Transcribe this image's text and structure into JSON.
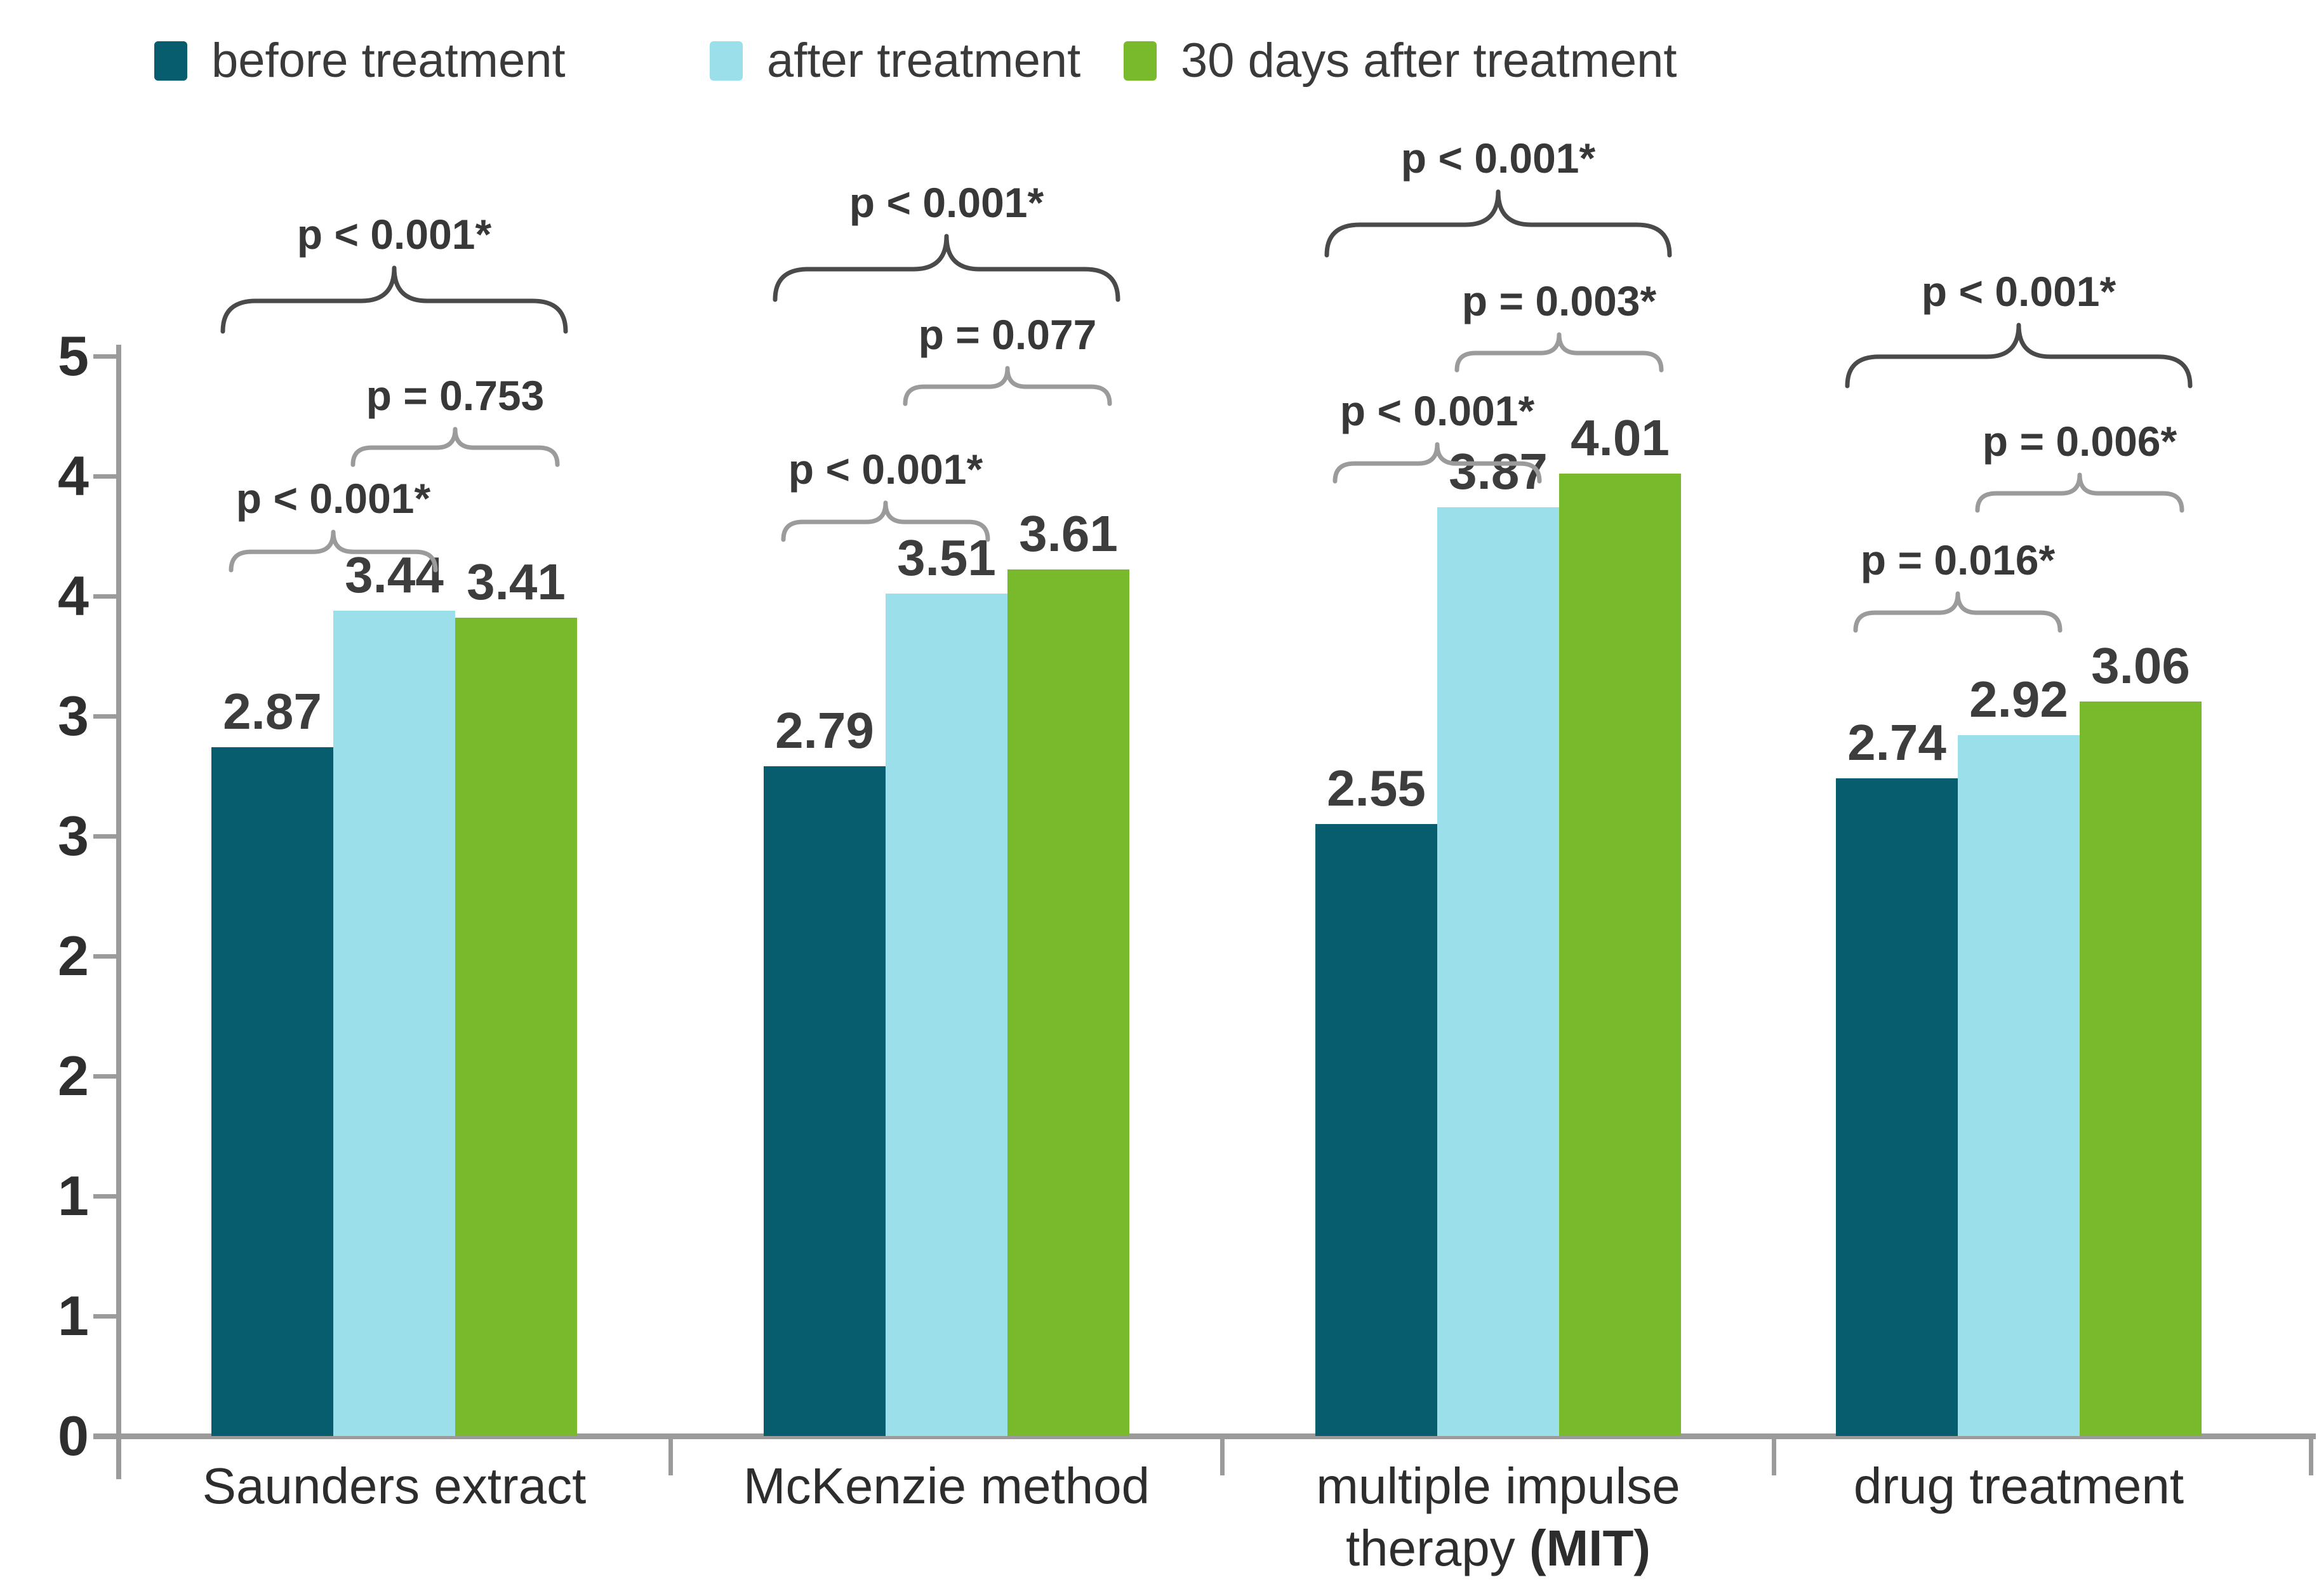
{
  "chart_data": {
    "type": "bar",
    "title": "",
    "ylabel": "",
    "xlabel": "",
    "ylim": [
      0,
      4.5
    ],
    "grid": false,
    "y_axis_tick_labels_bottom_to_top": [
      "0",
      "1",
      "1",
      "2",
      "2",
      "3",
      "3",
      "4",
      "4",
      "5"
    ],
    "legend_position": "top",
    "categories": [
      {
        "label": "Saunders extract",
        "lines": [
          [
            {
              "text": "Saunders extract",
              "bold": false
            }
          ]
        ]
      },
      {
        "label": "McKenzie method",
        "lines": [
          [
            {
              "text": "McKenzie method",
              "bold": false
            }
          ]
        ]
      },
      {
        "label": "multiple impulse therapy (MIT)",
        "lines": [
          [
            {
              "text": "multiple impulse",
              "bold": false
            }
          ],
          [
            {
              "text": "therapy ",
              "bold": false
            },
            {
              "text": "(MIT)",
              "bold": true
            }
          ]
        ]
      },
      {
        "label": "drug treatment",
        "lines": [
          [
            {
              "text": "drug treatment",
              "bold": false
            }
          ]
        ]
      }
    ],
    "series": [
      {
        "name": "before treatment",
        "color": "#075c6e",
        "values": [
          2.87,
          2.79,
          2.55,
          2.74
        ]
      },
      {
        "name": "after treatment",
        "color": "#9adfe9",
        "values": [
          3.44,
          3.51,
          3.87,
          2.92
        ]
      },
      {
        "name": "30 days after treatment",
        "color": "#79b92c",
        "values": [
          3.41,
          3.61,
          4.01,
          3.06
        ]
      }
    ],
    "value_labels": [
      [
        "2.87",
        "3.44",
        "3.41"
      ],
      [
        "2.79",
        "3.51",
        "3.61"
      ],
      [
        "2.55",
        "3.87",
        "4.01"
      ],
      [
        "2.74",
        "2.92",
        "3.06"
      ]
    ],
    "significance_annotations": [
      {
        "category": "Saunders extract",
        "comparisons": [
          {
            "bars": [
              1,
              3
            ],
            "label": "p < 0.001*"
          },
          {
            "bars": [
              2,
              3
            ],
            "label": "p = 0.753"
          },
          {
            "bars": [
              1,
              2
            ],
            "label": "p < 0.001*"
          }
        ]
      },
      {
        "category": "McKenzie method",
        "comparisons": [
          {
            "bars": [
              1,
              3
            ],
            "label": "p < 0.001*"
          },
          {
            "bars": [
              2,
              3
            ],
            "label": "p = 0.077"
          },
          {
            "bars": [
              1,
              2
            ],
            "label": "p < 0.001*"
          }
        ]
      },
      {
        "category": "multiple impulse therapy (MIT)",
        "comparisons": [
          {
            "bars": [
              1,
              3
            ],
            "label": "p < 0.001*"
          },
          {
            "bars": [
              2,
              3
            ],
            "label": "p = 0.003*"
          },
          {
            "bars": [
              1,
              2
            ],
            "label": "p < 0.001*"
          }
        ]
      },
      {
        "category": "drug treatment",
        "comparisons": [
          {
            "bars": [
              1,
              3
            ],
            "label": "p < 0.001*"
          },
          {
            "bars": [
              2,
              3
            ],
            "label": "p = 0.006*"
          },
          {
            "bars": [
              1,
              2
            ],
            "label": "p = 0.016*"
          }
        ]
      }
    ],
    "colors": {
      "background": "#ffffff",
      "axis": "#9b9b9b",
      "text": "#3a3a3a",
      "brace_dark": "#4a4a4a",
      "brace_gray": "#9b9b9b"
    }
  }
}
